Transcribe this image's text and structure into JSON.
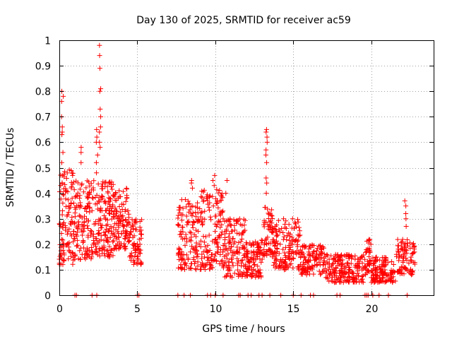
{
  "chart_data": {
    "type": "scatter",
    "title": "Day 130 of 2025, SRMTID for receiver ac59",
    "xlabel": "GPS time / hours",
    "ylabel": "SRMTID / TECUs",
    "xlim": [
      0,
      24
    ],
    "ylim": [
      0,
      1
    ],
    "xticks": [
      0,
      5,
      10,
      15,
      20
    ],
    "yticks": [
      0,
      0.1,
      0.2,
      0.3,
      0.4,
      0.5,
      0.6,
      0.7,
      0.8,
      0.9,
      1
    ],
    "xtick_labels": [
      "0",
      "5",
      "10",
      "15",
      "20"
    ],
    "ytick_labels": [
      "0",
      "0.1",
      "0.2",
      "0.3",
      "0.4",
      "0.5",
      "0.6",
      "0.7",
      "0.8",
      "0.9",
      "1"
    ],
    "grid": true,
    "marker": "+",
    "color": "#ff0000",
    "series": [
      {
        "name": "SRMTID",
        "bands": [
          {
            "x0": 0.0,
            "x1": 0.9,
            "lo": 0.12,
            "hi": 0.5,
            "n": 110
          },
          {
            "x0": 0.9,
            "x1": 2.2,
            "lo": 0.14,
            "hi": 0.45,
            "n": 140
          },
          {
            "x0": 2.2,
            "x1": 3.5,
            "lo": 0.15,
            "hi": 0.45,
            "n": 150
          },
          {
            "x0": 3.5,
            "x1": 4.5,
            "lo": 0.18,
            "hi": 0.42,
            "n": 110
          },
          {
            "x0": 4.5,
            "x1": 5.3,
            "lo": 0.12,
            "hi": 0.3,
            "n": 70
          },
          {
            "x0": 7.6,
            "x1": 9.0,
            "lo": 0.1,
            "hi": 0.38,
            "n": 130
          },
          {
            "x0": 9.0,
            "x1": 10.5,
            "lo": 0.1,
            "hi": 0.42,
            "n": 140
          },
          {
            "x0": 10.5,
            "x1": 12.0,
            "lo": 0.07,
            "hi": 0.3,
            "n": 140
          },
          {
            "x0": 12.0,
            "x1": 13.1,
            "lo": 0.07,
            "hi": 0.22,
            "n": 100
          },
          {
            "x0": 13.1,
            "x1": 13.7,
            "lo": 0.15,
            "hi": 0.35,
            "n": 60
          },
          {
            "x0": 13.7,
            "x1": 15.5,
            "lo": 0.1,
            "hi": 0.3,
            "n": 150
          },
          {
            "x0": 15.5,
            "x1": 17.0,
            "lo": 0.08,
            "hi": 0.2,
            "n": 120
          },
          {
            "x0": 17.0,
            "x1": 19.5,
            "lo": 0.05,
            "hi": 0.16,
            "n": 200
          },
          {
            "x0": 19.5,
            "x1": 20.0,
            "lo": 0.08,
            "hi": 0.22,
            "n": 40
          },
          {
            "x0": 20.0,
            "x1": 21.6,
            "lo": 0.05,
            "hi": 0.15,
            "n": 130
          },
          {
            "x0": 21.6,
            "x1": 22.8,
            "lo": 0.08,
            "hi": 0.22,
            "n": 90
          }
        ],
        "peaks": [
          {
            "x": 0.2,
            "values": [
              0.8,
              0.78,
              0.76,
              0.7,
              0.66,
              0.64,
              0.63,
              0.56,
              0.52
            ]
          },
          {
            "x": 1.35,
            "values": [
              0.58,
              0.56,
              0.52
            ]
          },
          {
            "x": 2.4,
            "values": [
              0.65,
              0.62,
              0.6,
              0.55,
              0.52,
              0.48
            ]
          },
          {
            "x": 2.6,
            "values": [
              0.98,
              0.94,
              0.89,
              0.81,
              0.8,
              0.73,
              0.7,
              0.66,
              0.64,
              0.6,
              0.58
            ]
          },
          {
            "x": 8.5,
            "values": [
              0.45,
              0.44,
              0.42
            ]
          },
          {
            "x": 9.9,
            "values": [
              0.47,
              0.45,
              0.43
            ]
          },
          {
            "x": 10.7,
            "values": [
              0.45,
              0.4
            ]
          },
          {
            "x": 13.3,
            "values": [
              0.65,
              0.64,
              0.62,
              0.6,
              0.57,
              0.55,
              0.52,
              0.46,
              0.44,
              0.4
            ]
          },
          {
            "x": 22.2,
            "values": [
              0.37,
              0.35,
              0.32,
              0.3,
              0.27
            ]
          }
        ],
        "zero_values_x": [
          1.0,
          1.1,
          2.1,
          2.4,
          5.0,
          5.1,
          7.6,
          8.0,
          8.4,
          9.5,
          9.7,
          10.0,
          10.5,
          11.5,
          11.6,
          12.1,
          12.3,
          12.8,
          13.0,
          13.5,
          14.2,
          15.0,
          15.5,
          16.1,
          16.3,
          17.8,
          18.0,
          19.6,
          19.7,
          19.8,
          20.1,
          20.5,
          21.1,
          22.3
        ]
      }
    ]
  }
}
